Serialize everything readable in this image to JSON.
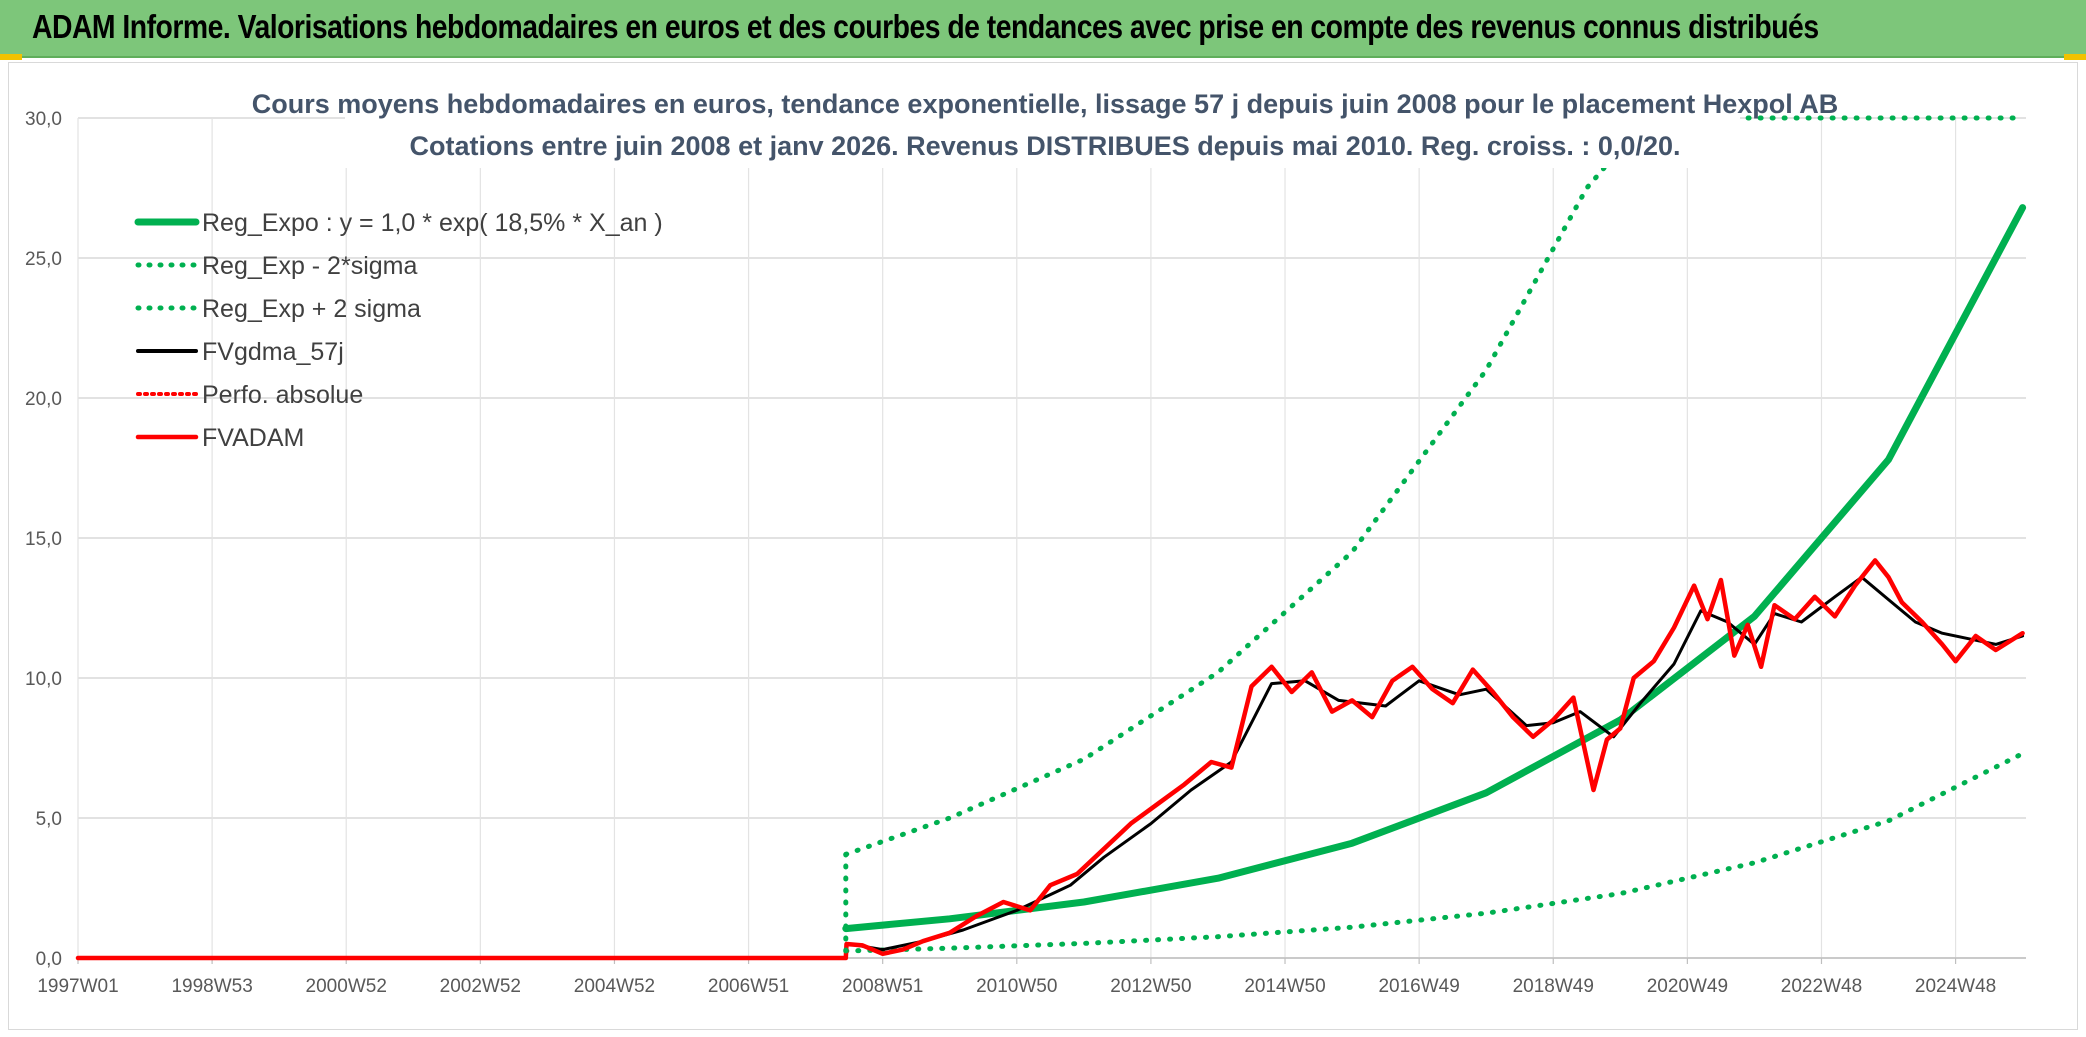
{
  "banner": {
    "title": "ADAM Informe. Valorisations hebdomadaires en euros et des courbes de tendances avec prise en compte des revenus connus distribués"
  },
  "chart_data": {
    "type": "line",
    "title_line1": "Cours moyens hebdomadaires en euros, tendance exponentielle, lissage 57 j depuis juin 2008 pour le placement Hexpol AB",
    "title_line2": "Cotations entre juin 2008 et janv 2026. Revenus DISTRIBUES depuis mai 2010. Reg. croiss. : 0,0/20.",
    "xlabel": "",
    "ylabel": "",
    "xlim": [
      1997.0,
      2026.05
    ],
    "ylim": [
      0,
      30
    ],
    "y_ticks": [
      "0,0",
      "5,0",
      "10,0",
      "15,0",
      "20,0",
      "25,0",
      "30,0"
    ],
    "x_ticks": [
      {
        "label": "1997W01",
        "x": 1997.0
      },
      {
        "label": "1998W53",
        "x": 1999.0
      },
      {
        "label": "2000W52",
        "x": 2001.0
      },
      {
        "label": "2002W52",
        "x": 2003.0
      },
      {
        "label": "2004W52",
        "x": 2005.0
      },
      {
        "label": "2006W51",
        "x": 2007.0
      },
      {
        "label": "2008W51",
        "x": 2009.0
      },
      {
        "label": "2010W50",
        "x": 2011.0
      },
      {
        "label": "2012W50",
        "x": 2013.0
      },
      {
        "label": "2014W50",
        "x": 2015.0
      },
      {
        "label": "2016W49",
        "x": 2017.0
      },
      {
        "label": "2018W49",
        "x": 2019.0
      },
      {
        "label": "2020W49",
        "x": 2021.0
      },
      {
        "label": "2022W48",
        "x": 2023.0
      },
      {
        "label": "2024W48",
        "x": 2025.0
      }
    ],
    "grid": true,
    "legend_position": "top-left",
    "colors": {
      "reg_expo": "#00b050",
      "reg_band": "#00b050",
      "fvgdma": "#000000",
      "perfo": "#ff0000",
      "fvadam": "#ff0000"
    },
    "series": [
      {
        "name": "Reg_Expo : y = 1,0 * exp( 18,5% *  X_an )",
        "key": "reg_expo",
        "style": "solid",
        "x": [
          2008.45,
          2010,
          2012,
          2014,
          2016,
          2018,
          2020,
          2022,
          2024,
          2026.0
        ],
        "values": [
          1.05,
          1.4,
          2.0,
          2.85,
          4.1,
          5.9,
          8.5,
          12.2,
          17.8,
          26.8
        ]
      },
      {
        "name": "Reg_Exp - 2*sigma",
        "key": "reg_minus",
        "style": "dotted",
        "x": [
          2008.45,
          2010,
          2012,
          2014,
          2016,
          2018,
          2020,
          2022,
          2024,
          2026.0
        ],
        "values": [
          0.25,
          0.35,
          0.52,
          0.76,
          1.1,
          1.6,
          2.3,
          3.4,
          4.9,
          7.3
        ]
      },
      {
        "name": "Reg_Exp + 2 sigma",
        "key": "reg_plus",
        "style": "dotted",
        "x": [
          2008.45,
          2010,
          2012,
          2014,
          2016,
          2018,
          2019.5,
          2020.4,
          2026.0
        ],
        "values": [
          3.7,
          5.0,
          7.1,
          10.2,
          14.5,
          21.0,
          27.5,
          30.0,
          30.0
        ]
      },
      {
        "name": "FVgdma_57j",
        "key": "fvgdma",
        "style": "solid",
        "x": [
          2008.5,
          2009.0,
          2009.6,
          2010.2,
          2011.0,
          2011.8,
          2012.3,
          2013.0,
          2013.6,
          2014.2,
          2014.8,
          2015.3,
          2015.8,
          2016.5,
          2017.0,
          2017.6,
          2018.0,
          2018.6,
          2019.0,
          2019.4,
          2019.9,
          2020.3,
          2020.8,
          2021.2,
          2021.6,
          2022.0,
          2022.3,
          2022.7,
          2023.2,
          2023.6,
          2024.0,
          2024.4,
          2024.8,
          2025.2,
          2025.6,
          2026.0
        ],
        "values": [
          0.5,
          0.3,
          0.6,
          1.0,
          1.7,
          2.6,
          3.6,
          4.8,
          6.0,
          7.0,
          9.8,
          9.9,
          9.2,
          9.0,
          9.9,
          9.4,
          9.6,
          8.3,
          8.4,
          8.8,
          7.9,
          9.1,
          10.5,
          12.4,
          12.0,
          11.2,
          12.3,
          12.0,
          12.9,
          13.6,
          12.8,
          12.0,
          11.6,
          11.4,
          11.2,
          11.5
        ]
      },
      {
        "name": "Perfo. absolue",
        "key": "perfo",
        "style": "dotted",
        "x": [
          1997.0,
          2008.45
        ],
        "values": [
          0.0,
          0.0
        ]
      },
      {
        "name": "FVADAM",
        "key": "fvadam",
        "style": "solid",
        "x": [
          1997.0,
          2008.45,
          2008.46,
          2008.7,
          2009.0,
          2009.3,
          2009.6,
          2010.0,
          2010.4,
          2010.8,
          2011.2,
          2011.5,
          2011.9,
          2012.3,
          2012.7,
          2013.1,
          2013.5,
          2013.9,
          2014.2,
          2014.5,
          2014.8,
          2015.1,
          2015.4,
          2015.7,
          2016.0,
          2016.3,
          2016.6,
          2016.9,
          2017.2,
          2017.5,
          2017.8,
          2018.1,
          2018.4,
          2018.7,
          2019.0,
          2019.3,
          2019.6,
          2019.8,
          2020.0,
          2020.2,
          2020.5,
          2020.8,
          2021.1,
          2021.3,
          2021.5,
          2021.7,
          2021.9,
          2022.1,
          2022.3,
          2022.6,
          2022.9,
          2023.2,
          2023.5,
          2023.8,
          2024.0,
          2024.2,
          2024.5,
          2024.8,
          2025.0,
          2025.3,
          2025.6,
          2026.0
        ],
        "values": [
          0.0,
          0.0,
          0.5,
          0.45,
          0.15,
          0.3,
          0.6,
          0.9,
          1.5,
          2.0,
          1.7,
          2.6,
          3.0,
          3.9,
          4.8,
          5.5,
          6.2,
          7.0,
          6.8,
          9.7,
          10.4,
          9.5,
          10.2,
          8.8,
          9.2,
          8.6,
          9.9,
          10.4,
          9.6,
          9.1,
          10.3,
          9.5,
          8.6,
          7.9,
          8.5,
          9.3,
          6.0,
          7.8,
          8.2,
          10.0,
          10.6,
          11.8,
          13.3,
          12.1,
          13.5,
          10.8,
          11.9,
          10.4,
          12.6,
          12.1,
          12.9,
          12.2,
          13.3,
          14.2,
          13.6,
          12.7,
          12.0,
          11.2,
          10.6,
          11.5,
          11.0,
          11.6
        ]
      }
    ]
  }
}
